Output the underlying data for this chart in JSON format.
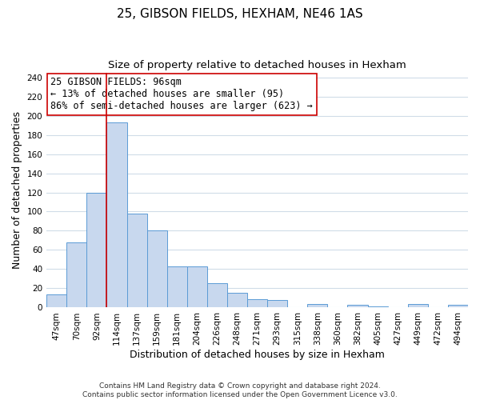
{
  "title": "25, GIBSON FIELDS, HEXHAM, NE46 1AS",
  "subtitle": "Size of property relative to detached houses in Hexham",
  "xlabel": "Distribution of detached houses by size in Hexham",
  "ylabel": "Number of detached properties",
  "categories": [
    "47sqm",
    "70sqm",
    "92sqm",
    "114sqm",
    "137sqm",
    "159sqm",
    "181sqm",
    "204sqm",
    "226sqm",
    "248sqm",
    "271sqm",
    "293sqm",
    "315sqm",
    "338sqm",
    "360sqm",
    "382sqm",
    "405sqm",
    "427sqm",
    "449sqm",
    "472sqm",
    "494sqm"
  ],
  "values": [
    14,
    68,
    120,
    193,
    98,
    80,
    43,
    43,
    25,
    15,
    9,
    8,
    0,
    4,
    0,
    3,
    1,
    0,
    4,
    0,
    3
  ],
  "bar_color": "#c8d8ee",
  "bar_edge_color": "#5b9bd5",
  "property_line_x": 2.5,
  "property_line_color": "#cc0000",
  "annotation_line1": "25 GIBSON FIELDS: 96sqm",
  "annotation_line2": "← 13% of detached houses are smaller (95)",
  "annotation_line3": "86% of semi-detached houses are larger (623) →",
  "annotation_box_color": "#ffffff",
  "annotation_box_edge_color": "#cc0000",
  "ylim": [
    0,
    245
  ],
  "yticks": [
    0,
    20,
    40,
    60,
    80,
    100,
    120,
    140,
    160,
    180,
    200,
    220,
    240
  ],
  "footer_line1": "Contains HM Land Registry data © Crown copyright and database right 2024.",
  "footer_line2": "Contains public sector information licensed under the Open Government Licence v3.0.",
  "background_color": "#ffffff",
  "plot_background_color": "#ffffff",
  "grid_color": "#d0dce8",
  "title_fontsize": 11,
  "subtitle_fontsize": 9.5,
  "axis_label_fontsize": 9,
  "tick_fontsize": 7.5,
  "annotation_fontsize": 8.5,
  "footer_fontsize": 6.5
}
